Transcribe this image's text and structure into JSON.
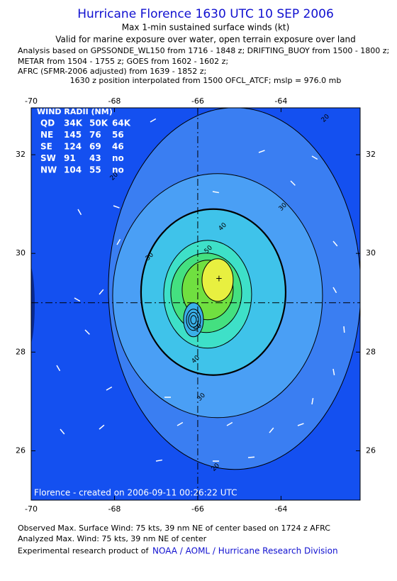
{
  "title": "Hurricane Florence 1630 UTC 10 SEP 2006",
  "header_lines": [
    "Max 1-min sustained surface winds (kt)",
    "Valid for marine exposure over water, open terrain exposure over land"
  ],
  "analysis_lines": [
    "Analysis based on  GPSSONDE_WL150 from 1716 - 1848 z;  DRIFTING_BUOY from 1500 - 1800 z;",
    "METAR from 1504 - 1755 z;  GOES from 1602 - 1602 z;",
    "AFRC (SFMR-2006 adjusted) from 1639 - 1852 z;",
    "1630 z position interpolated from 1500 OFCL_ATCF; mslp = 976.0 mb"
  ],
  "map": {
    "xlim": [
      -70,
      -62.1
    ],
    "ylim": [
      25,
      32.95
    ],
    "xticks": [
      -70,
      -68,
      -66,
      -64
    ],
    "yticks": [
      26,
      28,
      30,
      32
    ],
    "center": [
      -66,
      29
    ],
    "contour_levels": [
      20,
      30,
      40,
      50
    ]
  },
  "wind_radii": {
    "title": "WIND RADII (NM)",
    "rows": [
      [
        "QD",
        "34K",
        "50K",
        "64K"
      ],
      [
        "NE",
        "145",
        "76",
        "56"
      ],
      [
        "SE",
        "124",
        "69",
        "46"
      ],
      [
        "SW",
        "91",
        "43",
        "no"
      ],
      [
        "NW",
        "104",
        "55",
        "no"
      ]
    ]
  },
  "credit": "Florence - created on 2006-09-11 00:26:22 UTC",
  "footer_lines": [
    "Observed Max. Surface Wind: 75 kts, 39 nm NE of center based on 1724 z AFRC",
    "Analyzed Max. Wind: 75 kts, 39 nm NE of center"
  ],
  "footer_prefix": "Experimental research product of",
  "footer_link": "NOAA / AOML / Hurricane Research Division"
}
